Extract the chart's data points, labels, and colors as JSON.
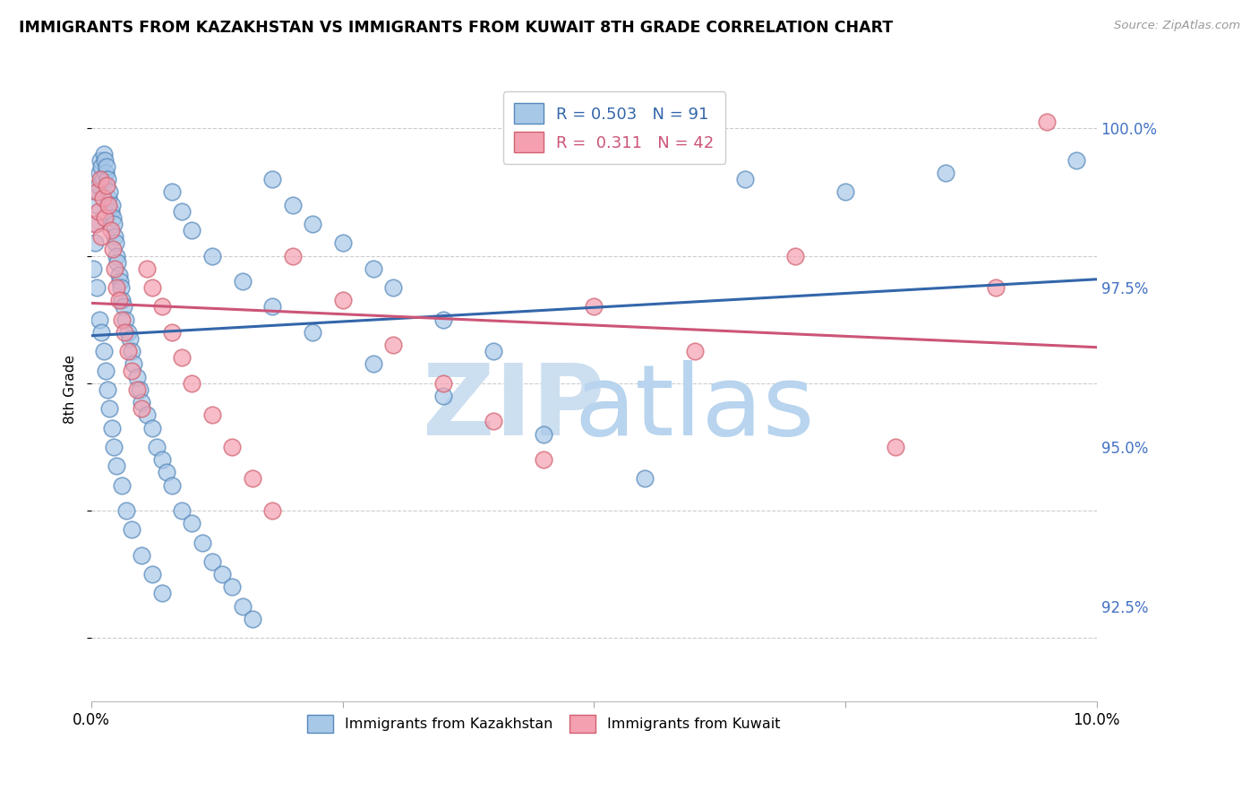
{
  "title": "IMMIGRANTS FROM KAZAKHSTAN VS IMMIGRANTS FROM KUWAIT 8TH GRADE CORRELATION CHART",
  "source": "Source: ZipAtlas.com",
  "ylabel": "8th Grade",
  "y_tick_labels": [
    "92.5%",
    "95.0%",
    "97.5%",
    "100.0%"
  ],
  "y_tick_values": [
    92.5,
    95.0,
    97.5,
    100.0
  ],
  "x_min": 0.0,
  "x_max": 10.0,
  "y_min": 91.0,
  "y_max": 100.8,
  "color_kaz": "#a8c8e8",
  "color_kaz_edge": "#5588bb",
  "color_kuw": "#f4a0b0",
  "color_kuw_edge": "#d06070",
  "color_kaz_line": "#3366aa",
  "color_kuw_line": "#cc5577",
  "color_axis_label": "#4472c4",
  "watermark_zip_color": "#ccdff0",
  "watermark_atlas_color": "#b8d4ee",
  "kaz_x": [
    0.02,
    0.03,
    0.04,
    0.05,
    0.06,
    0.07,
    0.08,
    0.09,
    0.1,
    0.11,
    0.12,
    0.13,
    0.14,
    0.15,
    0.16,
    0.17,
    0.18,
    0.19,
    0.2,
    0.21,
    0.22,
    0.23,
    0.24,
    0.25,
    0.26,
    0.27,
    0.28,
    0.29,
    0.3,
    0.32,
    0.34,
    0.36,
    0.38,
    0.4,
    0.42,
    0.45,
    0.48,
    0.5,
    0.55,
    0.6,
    0.65,
    0.7,
    0.75,
    0.8,
    0.9,
    1.0,
    1.1,
    1.2,
    1.3,
    1.4,
    1.5,
    1.6,
    1.8,
    2.0,
    2.2,
    2.5,
    2.8,
    3.0,
    3.5,
    4.0,
    0.05,
    0.08,
    0.1,
    0.12,
    0.14,
    0.16,
    0.18,
    0.2,
    0.22,
    0.25,
    0.3,
    0.35,
    0.4,
    0.5,
    0.6,
    0.7,
    0.8,
    0.9,
    1.0,
    1.2,
    1.5,
    1.8,
    2.2,
    2.8,
    3.5,
    4.5,
    5.5,
    6.5,
    7.5,
    8.5,
    9.8
  ],
  "kaz_y": [
    97.8,
    98.2,
    98.5,
    98.8,
    99.0,
    99.1,
    99.3,
    99.5,
    99.4,
    99.2,
    99.6,
    99.5,
    99.3,
    99.4,
    99.2,
    98.9,
    99.0,
    98.7,
    98.8,
    98.6,
    98.5,
    98.3,
    98.2,
    98.0,
    97.9,
    97.7,
    97.6,
    97.5,
    97.3,
    97.2,
    97.0,
    96.8,
    96.7,
    96.5,
    96.3,
    96.1,
    95.9,
    95.7,
    95.5,
    95.3,
    95.0,
    94.8,
    94.6,
    94.4,
    94.0,
    93.8,
    93.5,
    93.2,
    93.0,
    92.8,
    92.5,
    92.3,
    99.2,
    98.8,
    98.5,
    98.2,
    97.8,
    97.5,
    97.0,
    96.5,
    97.5,
    97.0,
    96.8,
    96.5,
    96.2,
    95.9,
    95.6,
    95.3,
    95.0,
    94.7,
    94.4,
    94.0,
    93.7,
    93.3,
    93.0,
    92.7,
    99.0,
    98.7,
    98.4,
    98.0,
    97.6,
    97.2,
    96.8,
    96.3,
    95.8,
    95.2,
    94.5,
    99.2,
    99.0,
    99.3,
    99.5
  ],
  "kuw_x": [
    0.03,
    0.05,
    0.07,
    0.09,
    0.11,
    0.13,
    0.15,
    0.17,
    0.19,
    0.21,
    0.23,
    0.25,
    0.27,
    0.3,
    0.33,
    0.36,
    0.4,
    0.45,
    0.5,
    0.55,
    0.6,
    0.7,
    0.8,
    0.9,
    1.0,
    1.2,
    1.4,
    1.6,
    1.8,
    2.0,
    2.5,
    3.0,
    3.5,
    4.0,
    4.5,
    5.0,
    6.0,
    7.0,
    8.0,
    9.0,
    0.1,
    9.5
  ],
  "kuw_y": [
    98.5,
    99.0,
    98.7,
    99.2,
    98.9,
    98.6,
    99.1,
    98.8,
    98.4,
    98.1,
    97.8,
    97.5,
    97.3,
    97.0,
    96.8,
    96.5,
    96.2,
    95.9,
    95.6,
    97.8,
    97.5,
    97.2,
    96.8,
    96.4,
    96.0,
    95.5,
    95.0,
    94.5,
    94.0,
    98.0,
    97.3,
    96.6,
    96.0,
    95.4,
    94.8,
    97.2,
    96.5,
    98.0,
    95.0,
    97.5,
    98.3,
    100.1
  ]
}
